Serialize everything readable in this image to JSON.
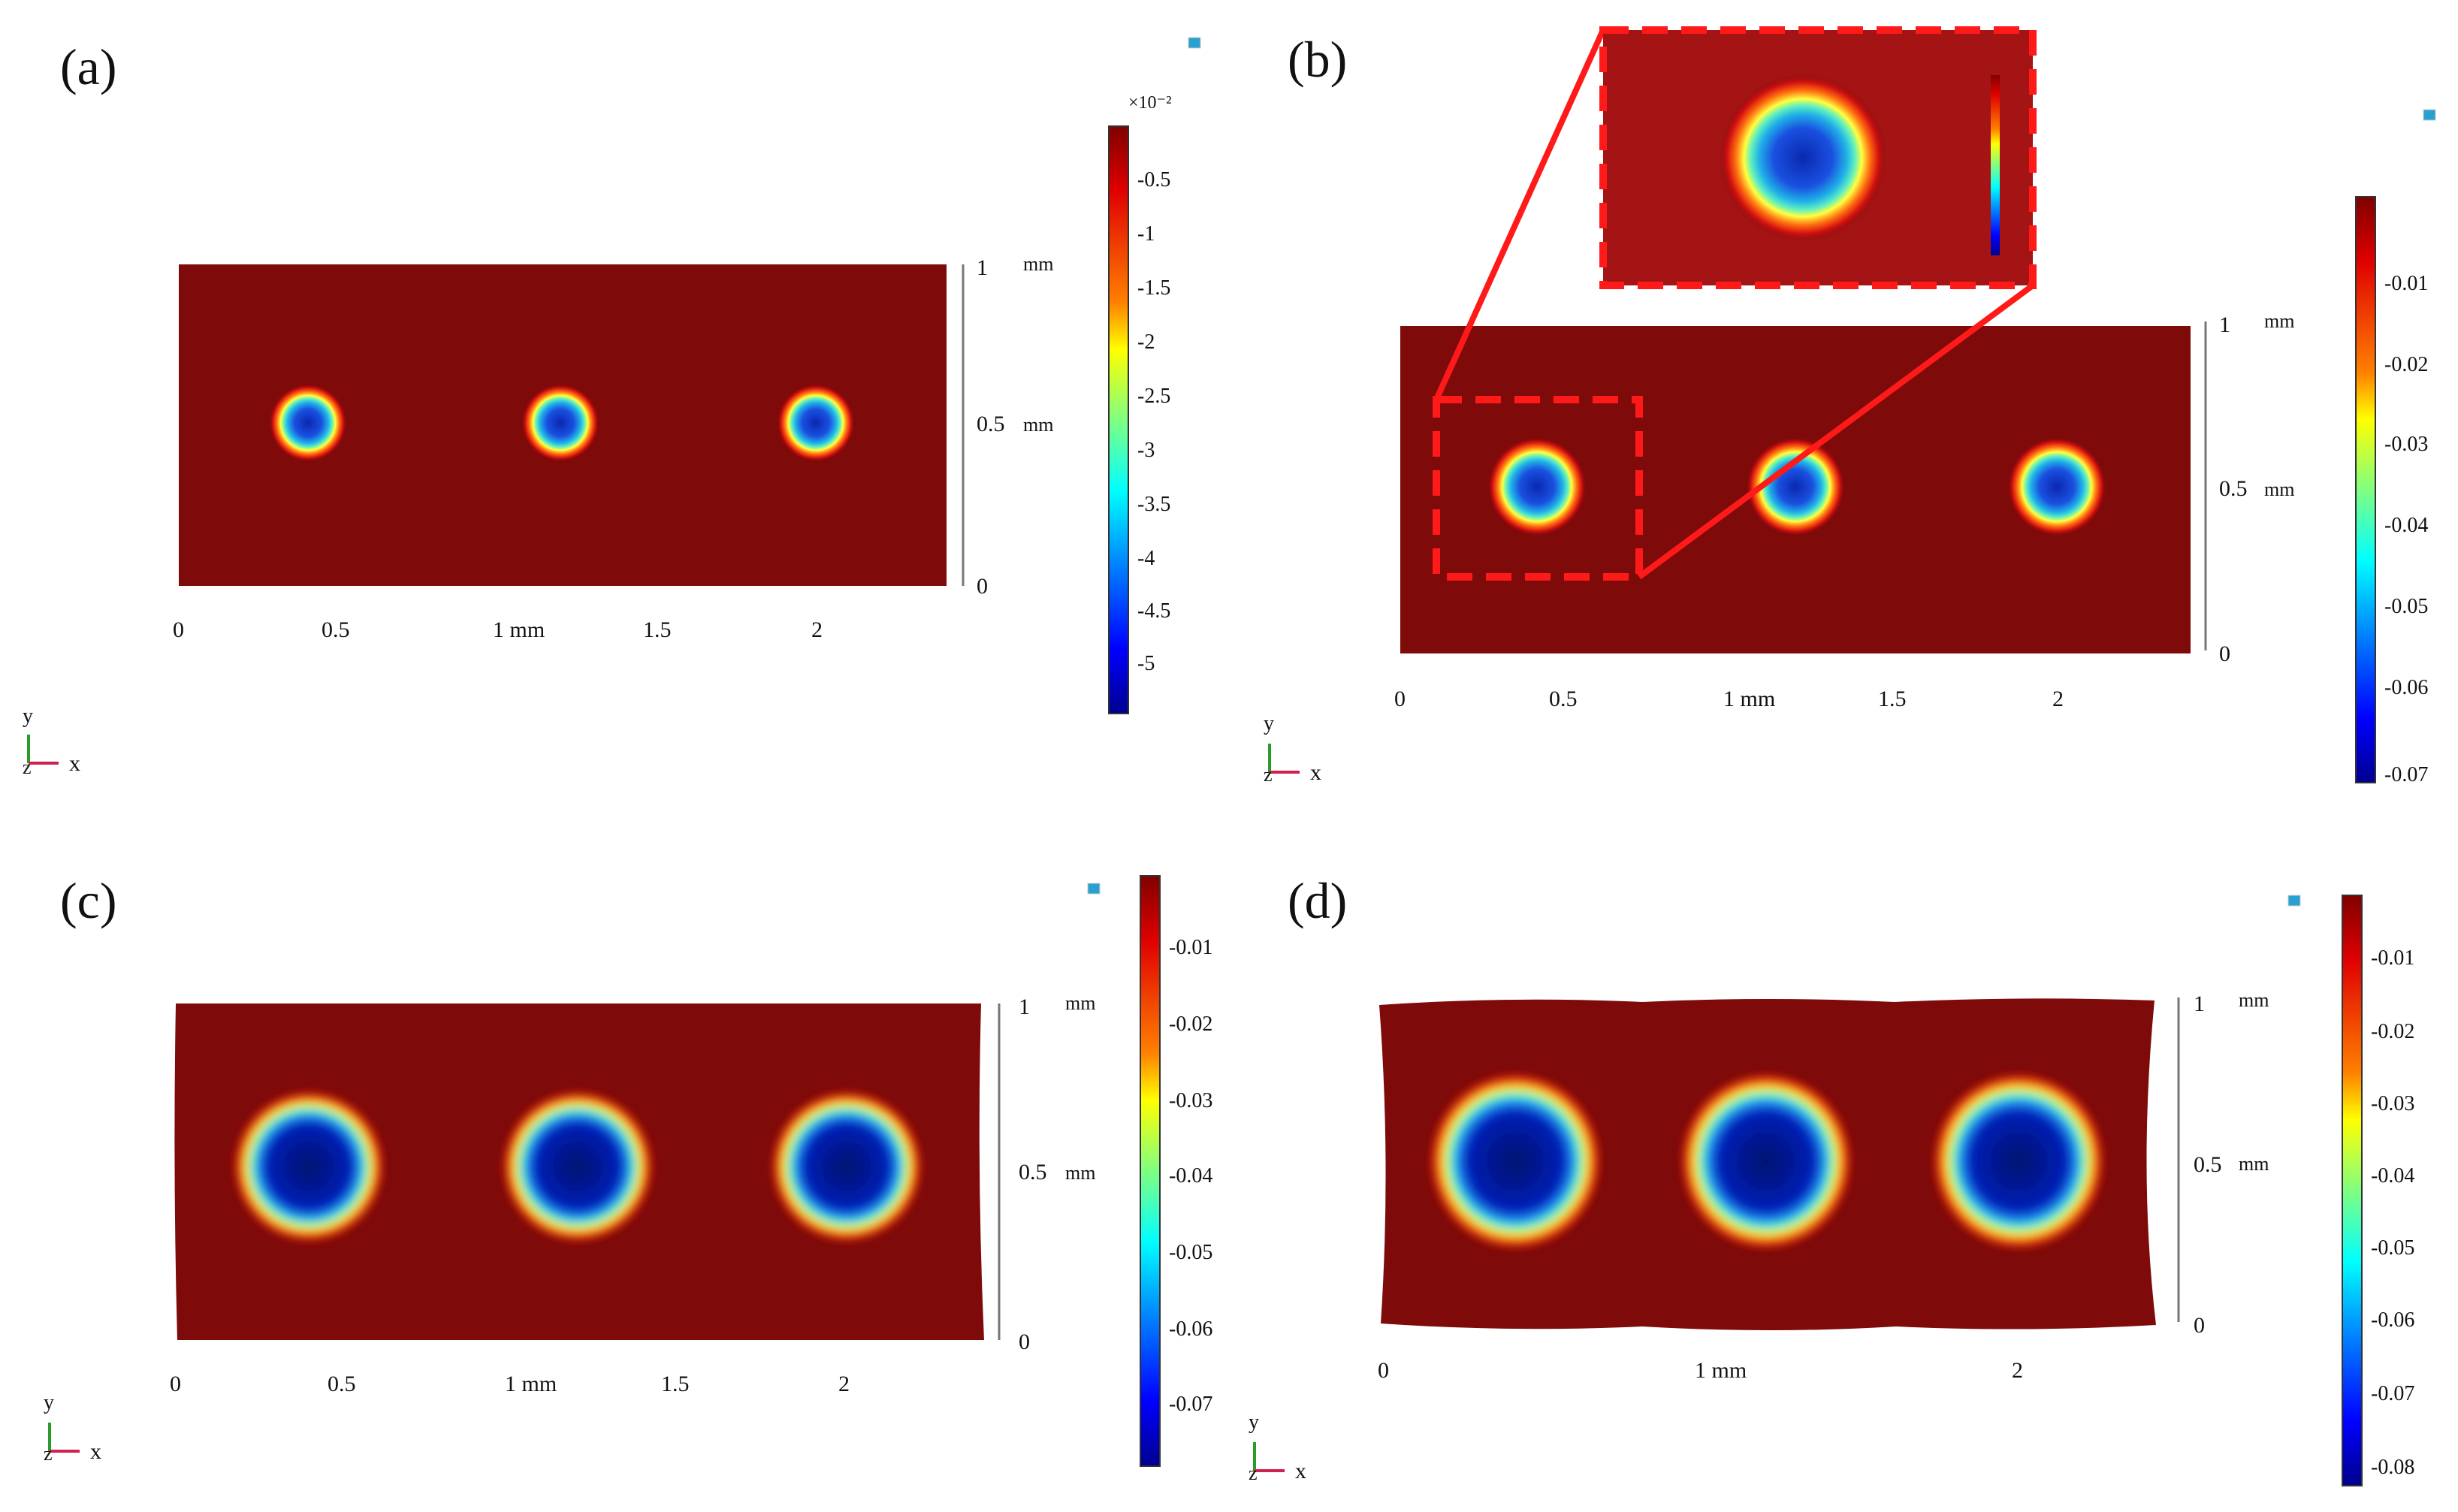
{
  "panels": [
    {
      "label": "(a)",
      "x_ticks": [
        "0",
        "0.5",
        "1 mm",
        "1.5",
        "2"
      ],
      "y_ticks": [
        "1",
        "0.5",
        "0"
      ],
      "y_unit": "mm",
      "colorbar": {
        "exponent": "×10⁻²",
        "ticks": [
          "-0.5",
          "-1",
          "-1.5",
          "-2",
          "-2.5",
          "-3",
          "-3.5",
          "-4",
          "-4.5",
          "-5"
        ]
      },
      "axis_glyphs": {
        "y": "y",
        "z": "z",
        "x": "x"
      }
    },
    {
      "label": "(b)",
      "x_ticks": [
        "0",
        "0.5",
        "1 mm",
        "1.5",
        "2"
      ],
      "y_ticks": [
        "1",
        "0.5",
        "0"
      ],
      "y_unit": "mm",
      "colorbar": {
        "ticks": [
          "-0.01",
          "-0.02",
          "-0.03",
          "-0.04",
          "-0.05",
          "-0.06",
          "-0.07"
        ]
      },
      "axis_glyphs": {
        "y": "y",
        "z": "z",
        "x": "x"
      }
    },
    {
      "label": "(c)",
      "x_ticks": [
        "0",
        "0.5",
        "1 mm",
        "1.5",
        "2"
      ],
      "y_ticks": [
        "1",
        "0.5",
        "0"
      ],
      "y_unit": "mm",
      "colorbar": {
        "ticks": [
          "-0.01",
          "-0.02",
          "-0.03",
          "-0.04",
          "-0.05",
          "-0.06",
          "-0.07"
        ]
      },
      "axis_glyphs": {
        "y": "y",
        "z": "z",
        "x": "x"
      }
    },
    {
      "label": "(d)",
      "x_ticks": [
        "0",
        "1 mm",
        "2"
      ],
      "y_ticks": [
        "1",
        "0.5",
        "0"
      ],
      "y_unit": "mm",
      "colorbar": {
        "ticks": [
          "-0.01",
          "-0.02",
          "-0.03",
          "-0.04",
          "-0.05",
          "-0.06",
          "-0.07",
          "-0.08"
        ]
      },
      "axis_glyphs": {
        "y": "y",
        "z": "z",
        "x": "x"
      }
    }
  ],
  "colors": {
    "background_field": "#7e0a0a",
    "highlight_box": "#ff1a1a",
    "colormap": [
      "#00008f",
      "#0000ff",
      "#0080ff",
      "#00ffff",
      "#80ff80",
      "#ffff00",
      "#ff8000",
      "#ff0000",
      "#800000"
    ]
  }
}
